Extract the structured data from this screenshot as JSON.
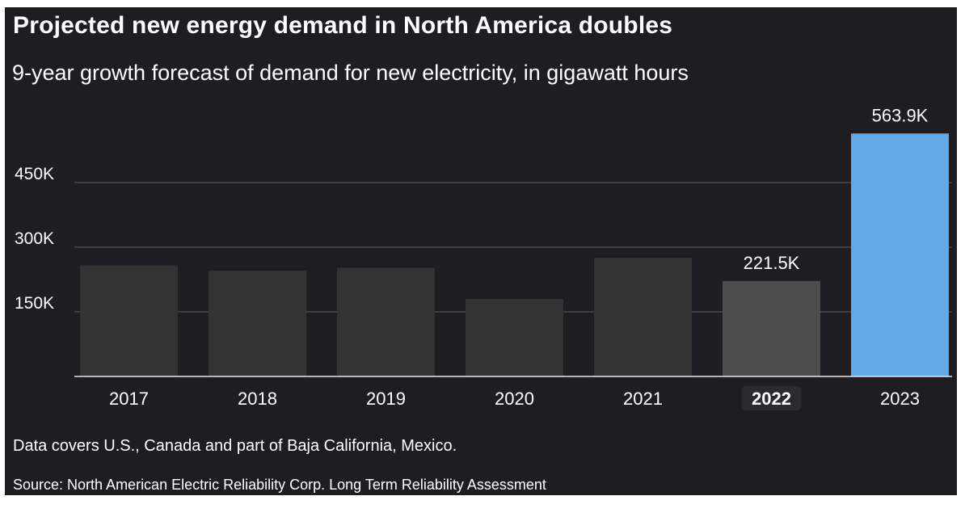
{
  "header": {
    "title": "Projected new energy demand in North America doubles",
    "subtitle": "9-year growth forecast of demand for new electricity, in gigawatt hours"
  },
  "footer": {
    "note": "Data covers U.S., Canada and part of Baja California, Mexico.",
    "source": "Source: North American Electric Reliability Corp. Long Term Reliability Assessment"
  },
  "colors": {
    "background": "#1e1d22",
    "bar_default": "#333333",
    "bar_highlight": "#4d4d4d",
    "bar_accent": "#63a9e8",
    "gridline": "#4a4a4e",
    "axis": "#e6e6e6",
    "emphasis_pill": "#2b2a30"
  },
  "chart_data": {
    "type": "bar",
    "title": "Projected new energy demand in North America doubles",
    "subtitle": "9-year growth forecast of demand for new electricity, in gigawatt hours",
    "categories": [
      "2017",
      "2018",
      "2019",
      "2020",
      "2021",
      "2022",
      "2023"
    ],
    "values": [
      258000,
      245000,
      252000,
      180000,
      275000,
      221500,
      563900
    ],
    "value_labels": [
      "",
      "",
      "",
      "",
      "",
      "221.5K",
      "563.9K"
    ],
    "emphasized_category": "2022",
    "highlight_category": "2023",
    "y_ticks": [
      150000,
      300000,
      450000
    ],
    "y_tick_labels": [
      "150K",
      "300K",
      "450K"
    ],
    "ylim": [
      0,
      600000
    ],
    "grid": true,
    "xlabel": "",
    "ylabel": ""
  }
}
